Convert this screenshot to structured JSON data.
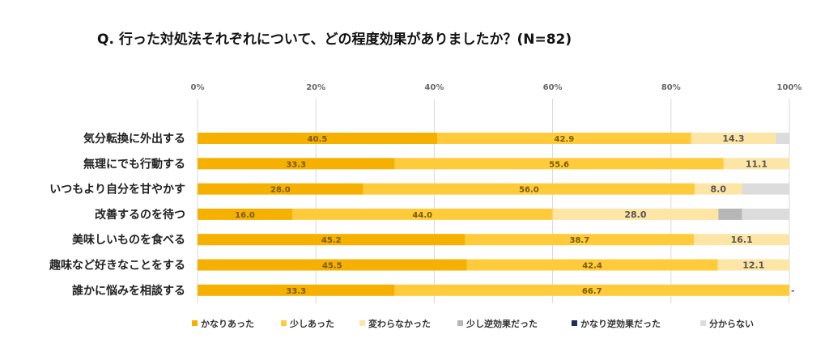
{
  "chart_data": {
    "type": "bar",
    "orientation": "horizontal",
    "stacked": true,
    "title": "Q. 行った対処法それぞれについて、どの程度効果がありましたか？(N=82)",
    "xlim": [
      0,
      100
    ],
    "x_ticks": [
      "0%",
      "20%",
      "40%",
      "60%",
      "80%",
      "100%"
    ],
    "grid": true,
    "legend_position": "bottom",
    "categories": [
      "気分転換に外出する",
      "無理にでも行動する",
      "いつもより自分を甘やかす",
      "改善するのを待つ",
      "美味しいものを食べる",
      "趣味など好きなことをする",
      "誰かに悩みを相談する"
    ],
    "series": [
      {
        "name": "かなりあった",
        "color": "#f5b000",
        "values": [
          40.5,
          33.3,
          28.0,
          16.0,
          45.2,
          45.5,
          33.3
        ]
      },
      {
        "name": "少しあった",
        "color": "#ffcb3a",
        "values": [
          42.9,
          55.6,
          56.0,
          44.0,
          38.7,
          42.4,
          66.7
        ]
      },
      {
        "name": "変わらなかった",
        "color": "#fde5a6",
        "values": [
          14.3,
          11.1,
          8.0,
          28.0,
          16.1,
          12.1,
          0
        ]
      },
      {
        "name": "少し逆効果だった",
        "color": "#b7b7b7",
        "values": [
          0,
          0,
          0,
          4.0,
          0,
          0,
          0
        ]
      },
      {
        "name": "かなり逆効果だった",
        "color": "#1f2d5c",
        "values": [
          0,
          0,
          0,
          0,
          0,
          0,
          0
        ]
      },
      {
        "name": "分からない",
        "color": "#dcdcdc",
        "values": [
          2.4,
          0,
          8.0,
          8.0,
          0,
          0,
          0
        ]
      }
    ],
    "data_labels": [
      [
        "40.5",
        "42.9",
        "14.3",
        "",
        "",
        ""
      ],
      [
        "33.3",
        "55.6",
        "11.1",
        "",
        "",
        ""
      ],
      [
        "28.0",
        "56.0",
        "8.0",
        "",
        "",
        ""
      ],
      [
        "16.0",
        "44.0",
        "28.0",
        "",
        "",
        ""
      ],
      [
        "45.2",
        "38.7",
        "16.1",
        "",
        "",
        ""
      ],
      [
        "45.5",
        "42.4",
        "12.1",
        "",
        "",
        ""
      ],
      [
        "33.3",
        "66.7",
        "",
        "",
        "",
        ""
      ]
    ],
    "end_marker": "-"
  }
}
